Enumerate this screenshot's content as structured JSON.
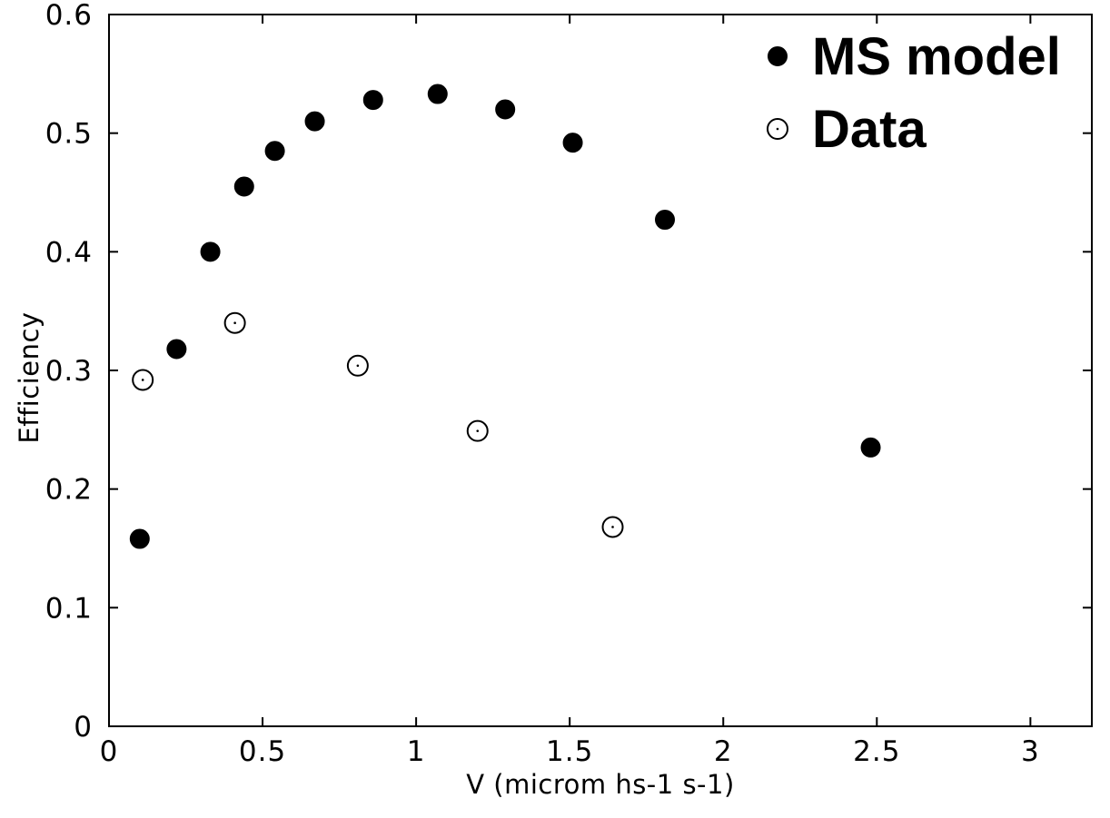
{
  "chart_data": {
    "type": "scatter",
    "xlabel": "V (microm hs-1 s-1)",
    "ylabel": "Efficiency",
    "xlim": [
      0,
      3.2
    ],
    "ylim": [
      0,
      0.6
    ],
    "x_ticks": [
      "0",
      "0.5",
      "1",
      "1.5",
      "2",
      "2.5",
      "3"
    ],
    "y_ticks": [
      "0",
      "0.1",
      "0.2",
      "0.3",
      "0.4",
      "0.5",
      "0.6"
    ],
    "x_tick_values": [
      0,
      0.5,
      1,
      1.5,
      2,
      2.5,
      3
    ],
    "y_tick_values": [
      0,
      0.1,
      0.2,
      0.3,
      0.4,
      0.5,
      0.6
    ],
    "grid": false,
    "legend_position": "top-right",
    "series": [
      {
        "name": "MS model",
        "marker": "filled-circle",
        "color": "#000000",
        "points": [
          {
            "x": 0.1,
            "y": 0.158
          },
          {
            "x": 0.22,
            "y": 0.318
          },
          {
            "x": 0.33,
            "y": 0.4
          },
          {
            "x": 0.44,
            "y": 0.455
          },
          {
            "x": 0.54,
            "y": 0.485
          },
          {
            "x": 0.67,
            "y": 0.51
          },
          {
            "x": 0.86,
            "y": 0.528
          },
          {
            "x": 1.07,
            "y": 0.533
          },
          {
            "x": 1.29,
            "y": 0.52
          },
          {
            "x": 1.51,
            "y": 0.492
          },
          {
            "x": 1.81,
            "y": 0.427
          },
          {
            "x": 2.48,
            "y": 0.235
          }
        ]
      },
      {
        "name": "Data",
        "marker": "open-circle-dot",
        "color": "#000000",
        "points": [
          {
            "x": 0.11,
            "y": 0.292
          },
          {
            "x": 0.41,
            "y": 0.34
          },
          {
            "x": 0.81,
            "y": 0.304
          },
          {
            "x": 1.2,
            "y": 0.249
          },
          {
            "x": 1.64,
            "y": 0.168
          }
        ]
      }
    ]
  }
}
